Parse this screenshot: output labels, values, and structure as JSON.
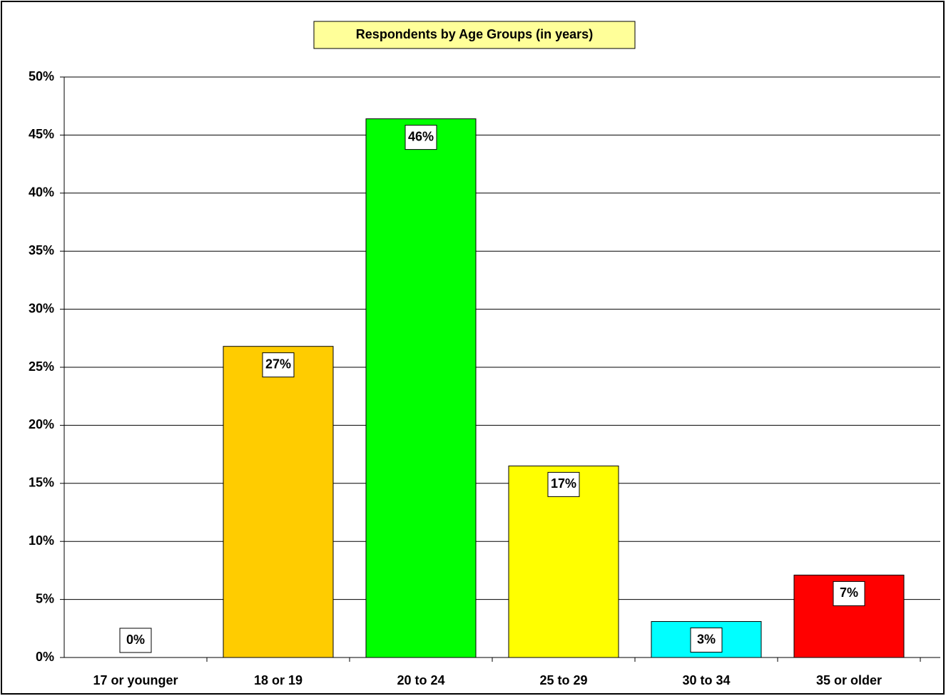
{
  "chart_data": {
    "type": "bar",
    "title": "Respondents by Age Groups (in years)",
    "categories": [
      "17 or younger",
      "18 or 19",
      "20 to 24",
      "25 to 29",
      "30 to 34",
      "35 or older"
    ],
    "values": [
      0,
      26.8,
      46.4,
      16.5,
      3.1,
      7.1
    ],
    "value_labels": [
      "0%",
      "27%",
      "46%",
      "17%",
      "3%",
      "7%"
    ],
    "colors": [
      "#ffcc00",
      "#ffcc00",
      "#00ff00",
      "#ffff00",
      "#00ffff",
      "#ff0000"
    ],
    "ylim": [
      0,
      50
    ],
    "yticks": [
      {
        "value": 0,
        "label": "0%"
      },
      {
        "value": 5,
        "label": "5%"
      },
      {
        "value": 10,
        "label": "10%"
      },
      {
        "value": 15,
        "label": "15%"
      },
      {
        "value": 20,
        "label": "20%"
      },
      {
        "value": 25,
        "label": "25%"
      },
      {
        "value": 30,
        "label": "30%"
      },
      {
        "value": 35,
        "label": "35%"
      },
      {
        "value": 40,
        "label": "40%"
      },
      {
        "value": 45,
        "label": "45%"
      },
      {
        "value": 50,
        "label": "50%"
      }
    ],
    "grid": true
  }
}
